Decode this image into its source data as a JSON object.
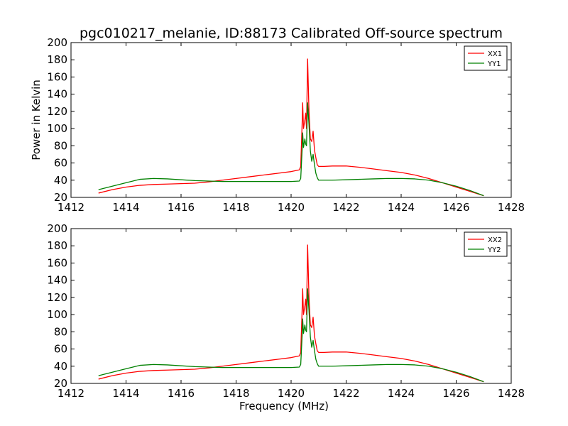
{
  "title": "pgc010217_melanie, ID:88173 Calibrated Off-source spectrum",
  "chart_data": [
    {
      "type": "line",
      "xlabel": "",
      "ylabel": "Power in Kelvin",
      "xlim": [
        1412,
        1428
      ],
      "ylim": [
        20,
        200
      ],
      "x_ticks": [
        "1412",
        "1414",
        "1416",
        "1418",
        "1420",
        "1422",
        "1424",
        "1426",
        "1428"
      ],
      "y_ticks": [
        "20",
        "40",
        "60",
        "80",
        "100",
        "120",
        "140",
        "160",
        "180",
        "200"
      ],
      "grid": false,
      "legend_position": "top-right",
      "series": [
        {
          "name": "XX1",
          "color": "#ff0000",
          "points": [
            [
              1413.0,
              25
            ],
            [
              1413.5,
              29
            ],
            [
              1414.0,
              32
            ],
            [
              1414.5,
              34
            ],
            [
              1415.0,
              35
            ],
            [
              1415.5,
              35.5
            ],
            [
              1416.0,
              36
            ],
            [
              1416.5,
              36.5
            ],
            [
              1417.0,
              38
            ],
            [
              1417.5,
              40
            ],
            [
              1418.0,
              42
            ],
            [
              1418.5,
              44
            ],
            [
              1419.0,
              46
            ],
            [
              1419.5,
              48
            ],
            [
              1420.0,
              50
            ],
            [
              1420.3,
              52
            ],
            [
              1420.35,
              56
            ],
            [
              1420.4,
              105
            ],
            [
              1420.42,
              130
            ],
            [
              1420.45,
              100
            ],
            [
              1420.5,
              110
            ],
            [
              1420.53,
              118
            ],
            [
              1420.56,
              100
            ],
            [
              1420.6,
              181
            ],
            [
              1420.65,
              120
            ],
            [
              1420.7,
              88
            ],
            [
              1420.75,
              85
            ],
            [
              1420.8,
              97
            ],
            [
              1420.85,
              75
            ],
            [
              1420.9,
              66
            ],
            [
              1420.95,
              58
            ],
            [
              1421.0,
              56
            ],
            [
              1421.2,
              56
            ],
            [
              1421.5,
              56.5
            ],
            [
              1422.0,
              56.5
            ],
            [
              1422.5,
              55
            ],
            [
              1423.0,
              53
            ],
            [
              1423.5,
              51
            ],
            [
              1424.0,
              49
            ],
            [
              1424.5,
              46
            ],
            [
              1425.0,
              42
            ],
            [
              1425.5,
              37
            ],
            [
              1426.0,
              32
            ],
            [
              1426.5,
              27
            ],
            [
              1427.0,
              22
            ]
          ]
        },
        {
          "name": "YY1",
          "color": "#008000",
          "points": [
            [
              1413.0,
              29
            ],
            [
              1413.5,
              33
            ],
            [
              1414.0,
              37
            ],
            [
              1414.5,
              41
            ],
            [
              1415.0,
              42
            ],
            [
              1415.5,
              41.5
            ],
            [
              1416.0,
              40.5
            ],
            [
              1416.5,
              39.5
            ],
            [
              1417.0,
              39
            ],
            [
              1417.5,
              38.5
            ],
            [
              1418.0,
              38.5
            ],
            [
              1418.5,
              38.5
            ],
            [
              1419.0,
              38.5
            ],
            [
              1419.5,
              38.5
            ],
            [
              1420.0,
              38.5
            ],
            [
              1420.3,
              39
            ],
            [
              1420.35,
              42
            ],
            [
              1420.4,
              75
            ],
            [
              1420.42,
              95
            ],
            [
              1420.45,
              78
            ],
            [
              1420.5,
              88
            ],
            [
              1420.53,
              82
            ],
            [
              1420.56,
              80
            ],
            [
              1420.6,
              130
            ],
            [
              1420.65,
              105
            ],
            [
              1420.7,
              74
            ],
            [
              1420.75,
              62
            ],
            [
              1420.8,
              70
            ],
            [
              1420.85,
              58
            ],
            [
              1420.9,
              48
            ],
            [
              1420.95,
              43
            ],
            [
              1421.0,
              40
            ],
            [
              1421.2,
              40
            ],
            [
              1421.5,
              40
            ],
            [
              1422.0,
              40.5
            ],
            [
              1422.5,
              41
            ],
            [
              1423.0,
              41.5
            ],
            [
              1423.5,
              42
            ],
            [
              1424.0,
              42
            ],
            [
              1424.5,
              41.5
            ],
            [
              1425.0,
              40
            ],
            [
              1425.5,
              37
            ],
            [
              1426.0,
              33
            ],
            [
              1426.5,
              28
            ],
            [
              1427.0,
              22
            ]
          ]
        }
      ]
    },
    {
      "type": "line",
      "xlabel": "Frequency (MHz)",
      "ylabel": "",
      "xlim": [
        1412,
        1428
      ],
      "ylim": [
        20,
        200
      ],
      "x_ticks": [
        "1412",
        "1414",
        "1416",
        "1418",
        "1420",
        "1422",
        "1424",
        "1426",
        "1428"
      ],
      "y_ticks": [
        "20",
        "40",
        "60",
        "80",
        "100",
        "120",
        "140",
        "160",
        "180",
        "200"
      ],
      "grid": false,
      "legend_position": "top-right",
      "series": [
        {
          "name": "XX2",
          "color": "#ff0000",
          "points": [
            [
              1413.0,
              25
            ],
            [
              1413.5,
              29
            ],
            [
              1414.0,
              32
            ],
            [
              1414.5,
              34
            ],
            [
              1415.0,
              35
            ],
            [
              1415.5,
              35.5
            ],
            [
              1416.0,
              36
            ],
            [
              1416.5,
              36.5
            ],
            [
              1417.0,
              38
            ],
            [
              1417.5,
              40
            ],
            [
              1418.0,
              42
            ],
            [
              1418.5,
              44
            ],
            [
              1419.0,
              46
            ],
            [
              1419.5,
              48
            ],
            [
              1420.0,
              50
            ],
            [
              1420.3,
              52
            ],
            [
              1420.35,
              56
            ],
            [
              1420.4,
              105
            ],
            [
              1420.42,
              130
            ],
            [
              1420.45,
              100
            ],
            [
              1420.5,
              110
            ],
            [
              1420.53,
              118
            ],
            [
              1420.56,
              100
            ],
            [
              1420.6,
              181
            ],
            [
              1420.65,
              120
            ],
            [
              1420.7,
              88
            ],
            [
              1420.75,
              85
            ],
            [
              1420.8,
              97
            ],
            [
              1420.85,
              75
            ],
            [
              1420.9,
              66
            ],
            [
              1420.95,
              58
            ],
            [
              1421.0,
              56
            ],
            [
              1421.2,
              56
            ],
            [
              1421.5,
              56.5
            ],
            [
              1422.0,
              56.5
            ],
            [
              1422.5,
              55
            ],
            [
              1423.0,
              53
            ],
            [
              1423.5,
              51
            ],
            [
              1424.0,
              49
            ],
            [
              1424.5,
              46
            ],
            [
              1425.0,
              42
            ],
            [
              1425.5,
              37
            ],
            [
              1426.0,
              32
            ],
            [
              1426.5,
              27
            ],
            [
              1427.0,
              22
            ]
          ]
        },
        {
          "name": "YY2",
          "color": "#008000",
          "points": [
            [
              1413.0,
              29
            ],
            [
              1413.5,
              33
            ],
            [
              1414.0,
              37
            ],
            [
              1414.5,
              41
            ],
            [
              1415.0,
              42
            ],
            [
              1415.5,
              41.5
            ],
            [
              1416.0,
              40.5
            ],
            [
              1416.5,
              39.5
            ],
            [
              1417.0,
              39
            ],
            [
              1417.5,
              38.5
            ],
            [
              1418.0,
              38.5
            ],
            [
              1418.5,
              38.5
            ],
            [
              1419.0,
              38.5
            ],
            [
              1419.5,
              38.5
            ],
            [
              1420.0,
              38.5
            ],
            [
              1420.3,
              39
            ],
            [
              1420.35,
              42
            ],
            [
              1420.4,
              75
            ],
            [
              1420.42,
              95
            ],
            [
              1420.45,
              78
            ],
            [
              1420.5,
              88
            ],
            [
              1420.53,
              82
            ],
            [
              1420.56,
              80
            ],
            [
              1420.6,
              130
            ],
            [
              1420.65,
              105
            ],
            [
              1420.7,
              74
            ],
            [
              1420.75,
              62
            ],
            [
              1420.8,
              70
            ],
            [
              1420.85,
              58
            ],
            [
              1420.9,
              48
            ],
            [
              1420.95,
              43
            ],
            [
              1421.0,
              40
            ],
            [
              1421.2,
              40
            ],
            [
              1421.5,
              40
            ],
            [
              1422.0,
              40.5
            ],
            [
              1422.5,
              41
            ],
            [
              1423.0,
              41.5
            ],
            [
              1423.5,
              42
            ],
            [
              1424.0,
              42
            ],
            [
              1424.5,
              41.5
            ],
            [
              1425.0,
              40
            ],
            [
              1425.5,
              37
            ],
            [
              1426.0,
              33
            ],
            [
              1426.5,
              28
            ],
            [
              1427.0,
              22
            ]
          ]
        }
      ]
    }
  ]
}
